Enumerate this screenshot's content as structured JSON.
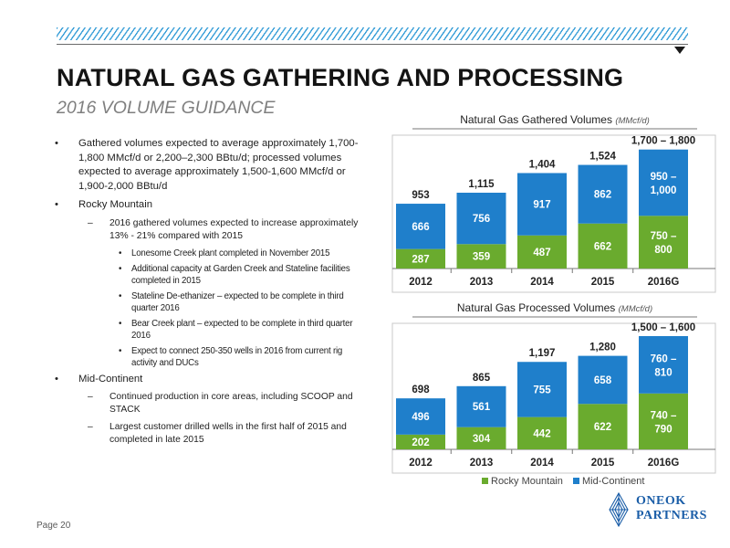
{
  "header": {
    "title": "NATURAL GAS GATHERING AND PROCESSING",
    "subtitle": "2016 VOLUME GUIDANCE"
  },
  "bullets": {
    "gathered": "Gathered volumes expected to average approximately 1,700-1,800 MMcf/d or 2,200–2,300 BBtu/d; processed volumes expected to average approximately 1,500-1,600 MMcf/d or 1,900-2,000 BBtu/d",
    "rocky": "Rocky Mountain",
    "rocky_sub": "2016 gathered volumes expected to increase approximately 13% - 21% compared with 2015",
    "rocky_items": [
      "Lonesome Creek plant completed in November 2015",
      "Additional capacity at Garden Creek and Stateline facilities completed in 2015",
      "Stateline De-ethanizer – expected to be complete in third quarter 2016",
      "Bear Creek plant – expected to be complete in third quarter 2016",
      "Expect to connect 250-350 wells in 2016 from current rig activity and DUCs"
    ],
    "midcon": "Mid-Continent",
    "midcon_items": [
      "Continued production in core areas, including SCOOP and STACK",
      "Largest customer drilled wells in the first half of 2015 and completed in late 2015"
    ]
  },
  "footer": {
    "page": "Page 20",
    "logo_line1": "ONEOK",
    "logo_line2": "PARTNERS"
  },
  "colors": {
    "rocky": "#6aab2e",
    "midcon": "#1f7fcb"
  },
  "chart_data": [
    {
      "type": "bar",
      "stacked": true,
      "title": "Natural Gas Gathered Volumes",
      "unit": "(MMcf/d)",
      "categories": [
        "2012",
        "2013",
        "2014",
        "2015",
        "2016G"
      ],
      "series": [
        {
          "name": "Rocky Mountain",
          "values": [
            287,
            359,
            487,
            662,
            775
          ],
          "labels": [
            "287",
            "359",
            "487",
            "662",
            "750 –|800"
          ]
        },
        {
          "name": "Mid-Continent",
          "values": [
            666,
            756,
            917,
            862,
            975
          ],
          "labels": [
            "666",
            "756",
            "917",
            "862",
            "950 –|1,000"
          ]
        }
      ],
      "totals": [
        "953",
        "1,115",
        "1,404",
        "1,524",
        "1,700 – 1,800"
      ],
      "ylim": [
        0,
        1800
      ]
    },
    {
      "type": "bar",
      "stacked": true,
      "title": "Natural Gas Processed Volumes",
      "unit": "(MMcf/d)",
      "categories": [
        "2012",
        "2013",
        "2014",
        "2015",
        "2016G"
      ],
      "series": [
        {
          "name": "Rocky Mountain",
          "values": [
            202,
            304,
            442,
            622,
            765
          ],
          "labels": [
            "202",
            "304",
            "442",
            "622",
            "740 –|790"
          ]
        },
        {
          "name": "Mid-Continent",
          "values": [
            496,
            561,
            755,
            658,
            785
          ],
          "labels": [
            "496",
            "561",
            "755",
            "658",
            "760 –|810"
          ]
        }
      ],
      "totals": [
        "698",
        "865",
        "1,197",
        "1,280",
        "1,500 – 1,600"
      ],
      "ylim": [
        0,
        1600
      ]
    }
  ],
  "legend": [
    "Rocky Mountain",
    "Mid-Continent"
  ]
}
